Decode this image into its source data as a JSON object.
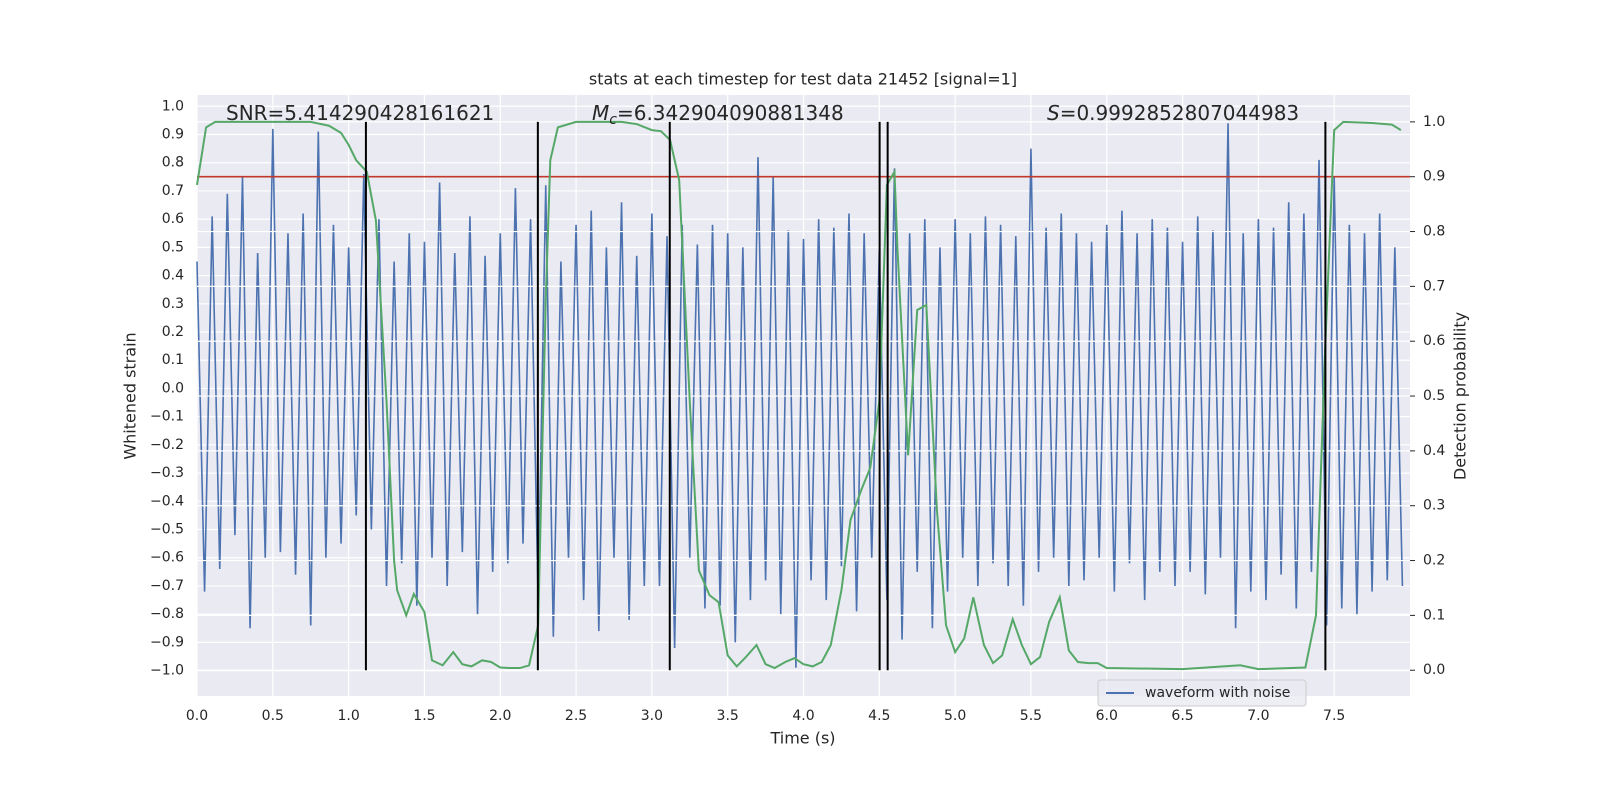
{
  "chart_data": {
    "type": "line",
    "title": "stats at each timestep for test data 21452 [signal=1]",
    "x_label": "Time (s)",
    "y_label": "Whitened strain",
    "y2_label": "Detection probability",
    "xlim": [
      0,
      8
    ],
    "ylim": [
      -1.09,
      1.04
    ],
    "y2lim": [
      -0.047,
      1.049
    ],
    "grid": true,
    "xticks": [
      {
        "value": 0,
        "label": "0.0"
      },
      0.5,
      {
        "value": 1,
        "label": "1.0"
      },
      1.5,
      {
        "value": 2,
        "label": "2.0"
      },
      2.5,
      {
        "value": 3,
        "label": "3.0"
      },
      3.5,
      {
        "value": 4,
        "label": "4.0"
      },
      4.5,
      {
        "value": 5,
        "label": "5.0"
      },
      5.5,
      {
        "value": 6,
        "label": "6.0"
      },
      6.5,
      {
        "value": 7,
        "label": "7.0"
      },
      7.5
    ],
    "yticks": [
      {
        "value": -1,
        "label": "−1.0"
      },
      {
        "value": -0.9,
        "label": "−0.9"
      },
      {
        "value": -0.8,
        "label": "−0.8"
      },
      {
        "value": -0.7,
        "label": "−0.7"
      },
      {
        "value": -0.6,
        "label": "−0.6"
      },
      {
        "value": -0.5,
        "label": "−0.5"
      },
      {
        "value": -0.4,
        "label": "−0.4"
      },
      {
        "value": -0.3,
        "label": "−0.3"
      },
      {
        "value": -0.2,
        "label": "−0.2"
      },
      {
        "value": -0.1,
        "label": "−0.1"
      },
      {
        "value": 0,
        "label": "0.0"
      },
      0.1,
      0.2,
      0.3,
      0.4,
      0.5,
      0.6,
      0.7,
      0.8,
      0.9,
      {
        "value": 1,
        "label": "1.0"
      }
    ],
    "y2ticks": [
      {
        "value": 0,
        "label": "0.0"
      },
      0.1,
      0.2,
      0.3,
      0.4,
      0.5,
      0.6,
      0.7,
      0.8,
      0.9,
      {
        "value": 1,
        "label": "1.0"
      }
    ],
    "annotations": [
      {
        "text": "SNR=5.414290428161621"
      },
      {
        "symbol": "M",
        "subscript": "c",
        "text": "=6.342904090881348"
      },
      {
        "symbol": "S",
        "text": "=0.9992852807044983"
      }
    ],
    "legend": "lower right",
    "threshold": {
      "value": 0.9,
      "axis": "y2",
      "color": "#c0392b"
    },
    "event_lines": {
      "color": "#000000",
      "x": [
        1.114,
        2.248,
        3.118,
        4.502,
        4.555,
        7.442
      ]
    },
    "series": [
      {
        "name": "waveform with noise",
        "color": "#4c72b0",
        "x": [
          0,
          0.05,
          0.1,
          0.15,
          0.2,
          0.25,
          0.3,
          0.35,
          0.4,
          0.45,
          0.5,
          0.55,
          0.6,
          0.65,
          0.7,
          0.75,
          0.8,
          0.85,
          0.9,
          0.95,
          1,
          1.05,
          1.1,
          1.15,
          1.2,
          1.25,
          1.3,
          1.35,
          1.4,
          1.45,
          1.5,
          1.55,
          1.6,
          1.65,
          1.7,
          1.75,
          1.8,
          1.85,
          1.9,
          1.95,
          2,
          2.05,
          2.1,
          2.15,
          2.2,
          2.25,
          2.3,
          2.35,
          2.4,
          2.45,
          2.5,
          2.55,
          2.6,
          2.65,
          2.7,
          2.75,
          2.8,
          2.85,
          2.9,
          2.95,
          3,
          3.05,
          3.1,
          3.15,
          3.2,
          3.25,
          3.3,
          3.35,
          3.4,
          3.45,
          3.5,
          3.55,
          3.6,
          3.65,
          3.7,
          3.75,
          3.8,
          3.85,
          3.9,
          3.95,
          4,
          4.05,
          4.1,
          4.15,
          4.2,
          4.25,
          4.3,
          4.35,
          4.4,
          4.45,
          4.5,
          4.55,
          4.6,
          4.65,
          4.7,
          4.75,
          4.8,
          4.85,
          4.9,
          4.95,
          5,
          5.05,
          5.1,
          5.15,
          5.2,
          5.25,
          5.3,
          5.35,
          5.4,
          5.45,
          5.5,
          5.55,
          5.6,
          5.65,
          5.7,
          5.75,
          5.8,
          5.85,
          5.9,
          5.95,
          6,
          6.05,
          6.1,
          6.15,
          6.2,
          6.25,
          6.3,
          6.35,
          6.4,
          6.45,
          6.5,
          6.55,
          6.6,
          6.65,
          6.7,
          6.75,
          6.8,
          6.85,
          6.9,
          6.95,
          7,
          7.05,
          7.1,
          7.15,
          7.2,
          7.25,
          7.3,
          7.35,
          7.4,
          7.45,
          7.5,
          7.55,
          7.6,
          7.65,
          7.7,
          7.75,
          7.8,
          7.85,
          7.9,
          7.95
        ],
        "values": [
          0.45,
          -0.72,
          0.61,
          -0.64,
          0.69,
          -0.52,
          0.75,
          -0.85,
          0.48,
          -0.6,
          0.92,
          -0.58,
          0.55,
          -0.66,
          0.62,
          -0.84,
          0.91,
          -0.6,
          0.58,
          -0.55,
          0.5,
          -0.45,
          0.76,
          -0.5,
          0.6,
          -0.7,
          0.45,
          -0.62,
          0.55,
          -0.77,
          0.52,
          -0.6,
          0.73,
          -0.7,
          0.48,
          -0.58,
          0.61,
          -0.8,
          0.47,
          -0.65,
          0.55,
          -0.62,
          0.71,
          -0.55,
          0.6,
          -0.76,
          0.72,
          -0.88,
          0.45,
          -0.6,
          0.58,
          -0.75,
          0.63,
          -0.86,
          0.5,
          -0.6,
          0.66,
          -0.82,
          0.47,
          -0.7,
          0.62,
          -0.7,
          0.54,
          -0.92,
          0.58,
          -0.6,
          0.51,
          -0.78,
          0.58,
          -0.77,
          0.55,
          -0.9,
          0.5,
          -0.75,
          0.82,
          -0.68,
          0.75,
          -0.8,
          0.56,
          -0.99,
          0.53,
          -0.68,
          0.6,
          -0.75,
          0.57,
          -0.63,
          0.62,
          -0.79,
          0.55,
          -0.6,
          0.49,
          -0.75,
          0.78,
          -0.89,
          0.55,
          -0.65,
          0.6,
          -0.85,
          0.5,
          -0.72,
          0.6,
          -0.6,
          0.55,
          -0.7,
          0.61,
          -0.62,
          0.58,
          -0.7,
          0.54,
          -0.77,
          0.85,
          -0.65,
          0.57,
          -0.6,
          0.62,
          -0.7,
          0.55,
          -0.68,
          0.52,
          -0.6,
          0.58,
          -0.72,
          0.63,
          -0.62,
          0.55,
          -0.75,
          0.6,
          -0.65,
          0.57,
          -0.7,
          0.52,
          -0.65,
          0.61,
          -0.73,
          0.56,
          -0.6,
          0.94,
          -0.85,
          0.55,
          -0.72,
          0.6,
          -0.75,
          0.57,
          -0.66,
          0.66,
          -0.78,
          0.62,
          -0.65,
          0.81,
          -0.84,
          0.75,
          -0.78,
          0.58,
          -0.8,
          0.55,
          -0.72,
          0.62,
          -0.68,
          0.5,
          -0.7
        ]
      },
      {
        "color": "#55a868",
        "axis": "y2",
        "x": [
          0,
          0.06,
          0.12,
          0.75,
          0.87,
          0.95,
          1,
          1.05,
          1.12,
          1.18,
          1.25,
          1.3,
          1.32,
          1.38,
          1.43,
          1.5,
          1.55,
          1.62,
          1.69,
          1.75,
          1.81,
          1.88,
          1.94,
          2,
          2.06,
          2.13,
          2.19,
          2.25,
          2.3,
          2.33,
          2.38,
          2.5,
          2.8,
          2.9,
          3,
          3.06,
          3.12,
          3.18,
          3.25,
          3.31,
          3.38,
          3.44,
          3.5,
          3.56,
          3.62,
          3.69,
          3.75,
          3.81,
          3.88,
          3.94,
          4,
          4.06,
          4.12,
          4.18,
          4.25,
          4.31,
          4.38,
          4.44,
          4.5,
          4.55,
          4.6,
          4.62,
          4.69,
          4.75,
          4.81,
          4.88,
          4.94,
          5,
          5.06,
          5.12,
          5.19,
          5.25,
          5.31,
          5.38,
          5.44,
          5.5,
          5.56,
          5.62,
          5.69,
          5.75,
          5.81,
          5.88,
          5.94,
          6,
          6.5,
          6.88,
          7,
          7.31,
          7.38,
          7.44,
          7.5,
          7.56,
          7.75,
          7.88,
          7.94
        ],
        "values": [
          0.885,
          0.99,
          1,
          1,
          0.993,
          0.98,
          0.958,
          0.93,
          0.909,
          0.82,
          0.49,
          0.2,
          0.146,
          0.1,
          0.139,
          0.106,
          0.018,
          0.009,
          0.033,
          0.011,
          0.007,
          0.018,
          0.015,
          0.005,
          0.004,
          0.004,
          0.009,
          0.082,
          0.675,
          0.93,
          0.99,
          1,
          1,
          0.996,
          0.985,
          0.983,
          0.967,
          0.894,
          0.49,
          0.182,
          0.137,
          0.124,
          0.027,
          0.007,
          0.024,
          0.046,
          0.011,
          0.004,
          0.015,
          0.022,
          0.011,
          0.007,
          0.015,
          0.046,
          0.146,
          0.274,
          0.328,
          0.369,
          0.49,
          0.885,
          0.909,
          0.766,
          0.392,
          0.657,
          0.666,
          0.292,
          0.082,
          0.033,
          0.058,
          0.133,
          0.046,
          0.013,
          0.027,
          0.093,
          0.046,
          0.011,
          0.024,
          0.088,
          0.133,
          0.036,
          0.015,
          0.013,
          0.013,
          0.004,
          0.002,
          0.009,
          0.002,
          0.005,
          0.1,
          0.584,
          0.985,
          1,
          0.998,
          0.995,
          0.985
        ]
      }
    ]
  }
}
